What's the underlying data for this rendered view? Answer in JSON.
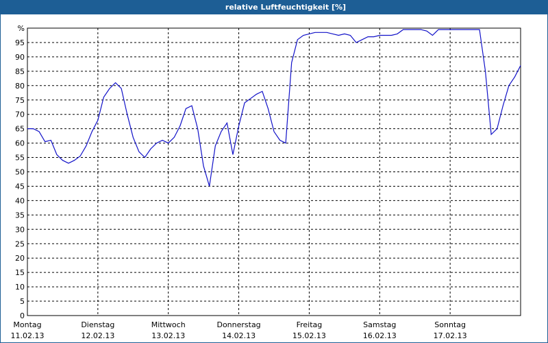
{
  "chart_data": {
    "type": "line",
    "title": "relative Luftfeuchtigkeit [%]",
    "xlim": [
      0,
      168
    ],
    "xticks": [
      {
        "value": 0,
        "label": "Montag",
        "date": "11.02.13"
      },
      {
        "value": 24,
        "label": "Dienstag",
        "date": "12.02.13"
      },
      {
        "value": 48,
        "label": "Mittwoch",
        "date": "13.02.13"
      },
      {
        "value": 72,
        "label": "Donnerstag",
        "date": "14.02.13"
      },
      {
        "value": 96,
        "label": "Freitag",
        "date": "15.02.13"
      },
      {
        "value": 120,
        "label": "Samstag",
        "date": "16.02.13"
      },
      {
        "value": 144,
        "label": "Sonntag",
        "date": "17.02.13"
      }
    ],
    "ylim": [
      0,
      100
    ],
    "yticks": [
      0,
      5,
      10,
      15,
      20,
      25,
      30,
      35,
      40,
      45,
      50,
      55,
      60,
      65,
      70,
      75,
      80,
      85,
      90,
      95,
      {
        "value": 100,
        "label": "%"
      }
    ],
    "grid": true,
    "x": [
      0,
      2,
      4,
      6,
      8,
      10,
      12,
      14,
      16,
      18,
      20,
      22,
      24,
      26,
      28,
      30,
      32,
      34,
      36,
      38,
      40,
      42,
      44,
      46,
      48,
      50,
      52,
      54,
      56,
      58,
      60,
      62,
      64,
      66,
      68,
      70,
      72,
      74,
      76,
      78,
      80,
      82,
      84,
      86,
      88,
      90,
      92,
      94,
      96,
      98,
      100,
      102,
      104,
      106,
      108,
      110,
      112,
      114,
      116,
      118,
      120,
      122,
      124,
      126,
      128,
      130,
      132,
      134,
      136,
      138,
      140,
      142,
      144,
      146,
      148,
      150,
      152,
      154,
      156,
      158,
      160,
      162,
      164,
      166,
      168
    ],
    "series": [
      {
        "color": "#1010c8",
        "values": [
          65,
          65,
          64,
          60.5,
          61,
          56,
          54,
          53,
          54,
          55.5,
          59,
          64,
          68,
          76,
          79,
          81,
          79,
          70,
          62,
          57,
          55,
          58,
          60,
          61,
          60,
          62,
          66,
          72,
          73,
          65,
          52,
          45,
          59,
          64,
          67,
          56,
          66,
          74,
          75.5,
          77,
          78,
          72,
          64,
          61,
          60,
          88,
          96,
          97.5,
          98,
          98.5,
          98.5,
          98.5,
          98,
          97.5,
          98,
          97.5,
          95,
          96,
          97,
          97,
          97.5,
          97.5,
          97.5,
          98,
          99.5,
          99.5,
          99.5,
          99.5,
          99,
          97.5,
          99.5,
          99.5,
          99.5,
          99.5,
          99.5,
          99.5,
          99.5,
          99.5,
          85,
          63,
          65,
          73,
          80,
          83,
          87
        ]
      }
    ]
  }
}
